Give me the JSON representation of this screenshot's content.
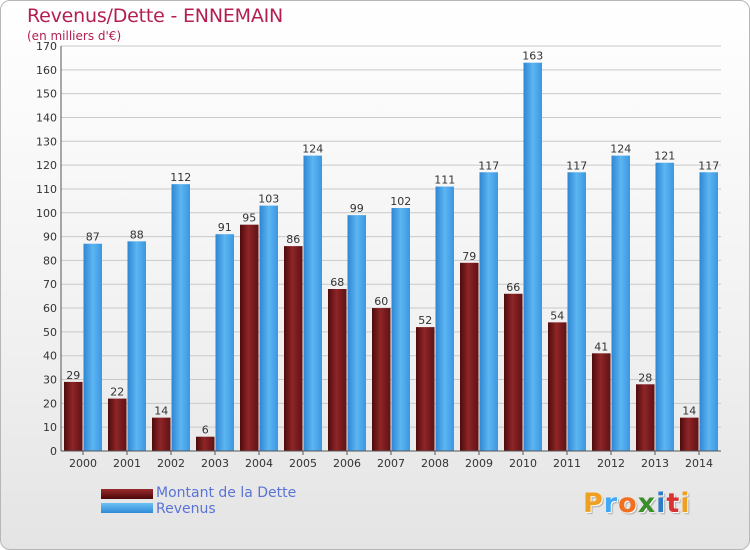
{
  "title": "Revenus/Dette - ENNEMAIN",
  "subtitle": "(en milliers d'€)",
  "colors": {
    "dette": "#7a1a1c",
    "revenus": "#3f9ee5",
    "title": "#b3204f"
  },
  "chart_data": {
    "type": "bar",
    "categories": [
      "2000",
      "2001",
      "2002",
      "2003",
      "2004",
      "2005",
      "2006",
      "2007",
      "2008",
      "2009",
      "2010",
      "2011",
      "2012",
      "2013",
      "2014"
    ],
    "series": [
      {
        "name": "Montant de la Dette",
        "values": [
          29,
          22,
          14,
          6,
          95,
          86,
          68,
          60,
          52,
          79,
          66,
          54,
          41,
          28,
          14
        ]
      },
      {
        "name": "Revenus",
        "values": [
          87,
          88,
          112,
          91,
          103,
          124,
          99,
          102,
          111,
          117,
          163,
          117,
          124,
          121,
          117
        ]
      }
    ],
    "ylim": [
      0,
      170
    ],
    "yticks": [
      0,
      10,
      20,
      30,
      40,
      50,
      60,
      70,
      80,
      90,
      100,
      110,
      120,
      130,
      140,
      150,
      160,
      170
    ],
    "grid": true,
    "legend": "bottom-left"
  },
  "legend": {
    "items": [
      "Montant de la Dette",
      "Revenus"
    ]
  },
  "logo": {
    "letters": [
      "P",
      "r",
      "o",
      "x",
      "i",
      "t",
      "i"
    ],
    "colors": [
      "#f0a020",
      "#3fa9f5",
      "#f07020",
      "#3a8f2c",
      "#2e7cc7",
      "#d93030",
      "#f0a020"
    ]
  }
}
